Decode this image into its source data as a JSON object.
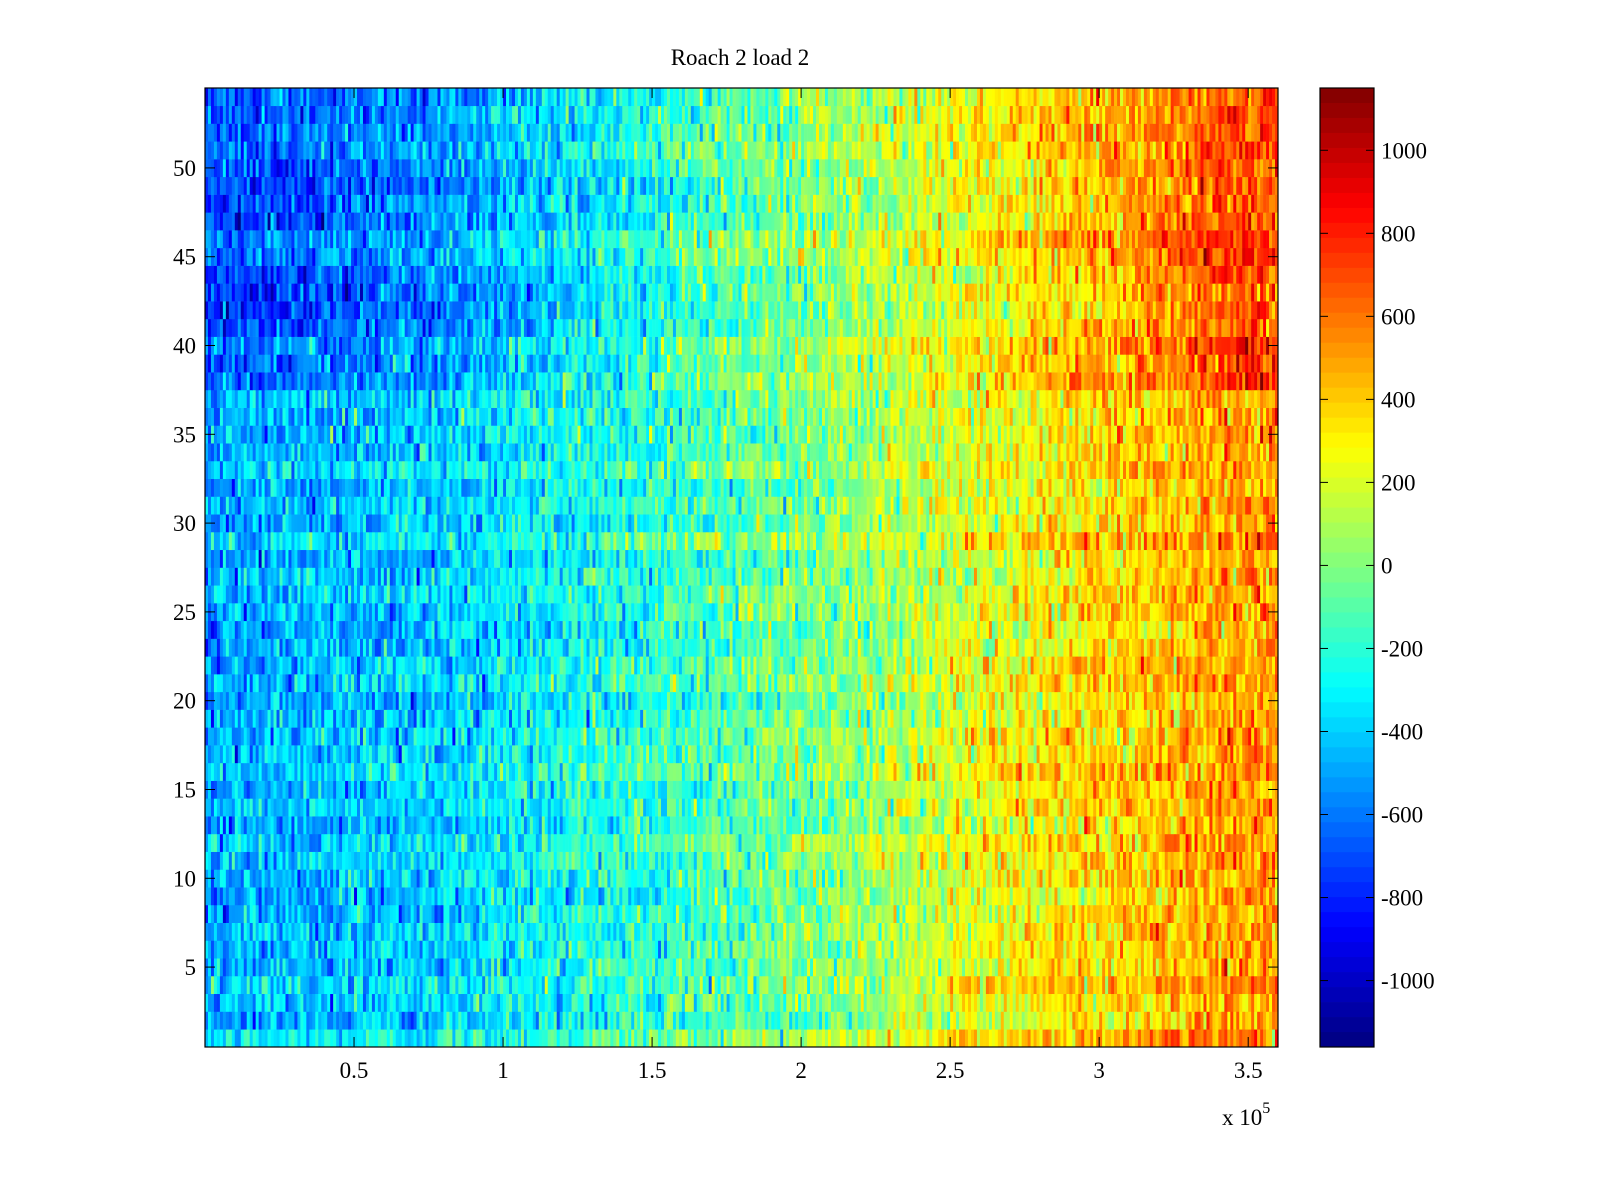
{
  "chart_data": {
    "type": "heatmap",
    "title": "Roach 2 load 2",
    "xlabel": "",
    "ylabel": "",
    "x_exponent_label": "x 10",
    "x_exponent": "5",
    "xlim": [
      0,
      360000
    ],
    "ylim": [
      0.5,
      54.5
    ],
    "rows": 54,
    "columns": 360,
    "xticks": [
      50000,
      100000,
      150000,
      200000,
      250000,
      300000,
      350000
    ],
    "xtick_labels": [
      "0.5",
      "1",
      "1.5",
      "2",
      "2.5",
      "3",
      "3.5"
    ],
    "yticks": [
      5,
      10,
      15,
      20,
      25,
      30,
      35,
      40,
      45,
      50
    ],
    "ytick_labels": [
      "5",
      "10",
      "15",
      "20",
      "25",
      "30",
      "35",
      "40",
      "45",
      "50"
    ],
    "colormap": "jet",
    "clim": [
      -1160,
      1150
    ],
    "colorbar_ticks": [
      1000,
      800,
      600,
      400,
      200,
      0,
      -200,
      -400,
      -600,
      -800,
      -1000
    ],
    "colorbar_tick_labels": [
      "1000",
      "800",
      "600",
      "400",
      "200",
      "0",
      "-200",
      "-400",
      "-600",
      "-800",
      "-1000"
    ],
    "column_bin_centers_x": [
      15000,
      45000,
      75000,
      105000,
      135000,
      165000,
      195000,
      225000,
      255000,
      285000,
      315000,
      345000
    ],
    "row_bands": [
      {
        "rows": [
          1,
          37
        ],
        "mean_values": [
          -450,
          -420,
          -380,
          -300,
          -220,
          -130,
          -30,
          80,
          220,
          330,
          420,
          520
        ]
      },
      {
        "rows": [
          38,
          54
        ],
        "mean_values": [
          -700,
          -650,
          -560,
          -420,
          -300,
          -150,
          -20,
          100,
          250,
          380,
          520,
          700
        ]
      }
    ],
    "noise_std": 150,
    "grid": false
  }
}
